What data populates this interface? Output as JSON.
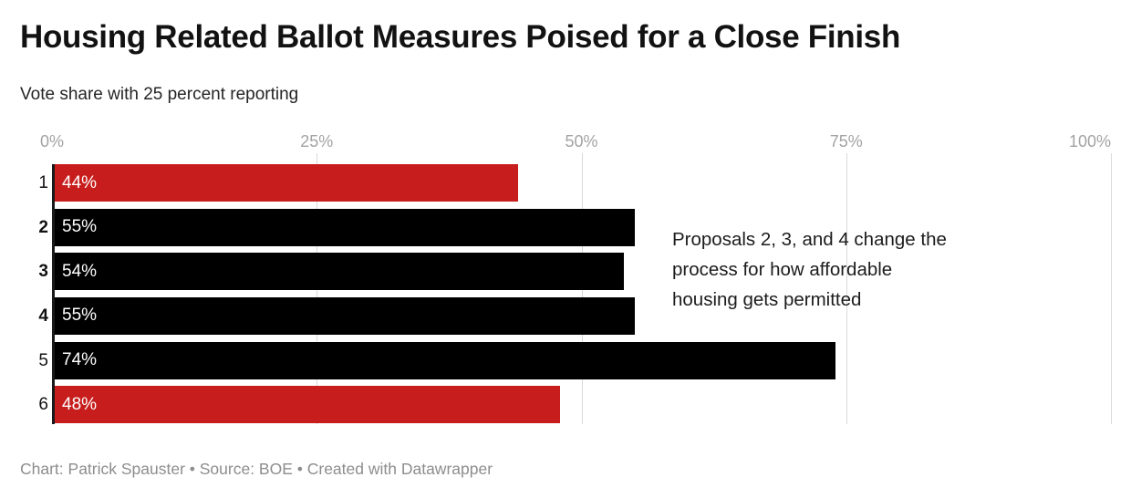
{
  "header": {
    "title": "Housing Related Ballot Measures Poised for a Close Finish",
    "subtitle": "Vote share with 25 percent reporting"
  },
  "annotation": {
    "text": "Proposals 2, 3, and 4 change the process for how affordable housing gets permitted",
    "lines": [
      "Proposals 2, 3, and 4 change the",
      "process for how affordable",
      "housing gets permitted"
    ]
  },
  "footer": {
    "text": "Chart: Patrick Spauster • Source: BOE • Created with Datawrapper"
  },
  "colors": {
    "accent_red": "#c71e1d",
    "bar_black": "#000000",
    "gridline": "#d9d9d9",
    "axis_line": "#1a1a1a",
    "axis_label": "#a3a3a3",
    "bar_label": "#ffffff"
  },
  "chart_data": {
    "type": "bar",
    "orientation": "horizontal",
    "title": "Housing Related Ballot Measures Poised for a Close Finish",
    "subtitle": "Vote share with 25 percent reporting",
    "categories": [
      "1",
      "2",
      "3",
      "4",
      "5",
      "6"
    ],
    "values": [
      44,
      55,
      54,
      55,
      74,
      48
    ],
    "value_labels": [
      "44%",
      "55%",
      "54%",
      "55%",
      "74%",
      "48%"
    ],
    "bar_colors": [
      "#c71e1d",
      "#000000",
      "#000000",
      "#000000",
      "#000000",
      "#c71e1d"
    ],
    "bold_categories": [
      "2",
      "3",
      "4"
    ],
    "x_ticks": [
      {
        "value": 0,
        "label": "0%"
      },
      {
        "value": 25,
        "label": "25%"
      },
      {
        "value": 50,
        "label": "50%"
      },
      {
        "value": 75,
        "label": "75%"
      },
      {
        "value": 100,
        "label": "100%"
      }
    ],
    "xlim": [
      0,
      100
    ],
    "grid": true,
    "legend": false,
    "annotation": "Proposals 2, 3, and 4 change the process for how affordable housing gets permitted"
  }
}
